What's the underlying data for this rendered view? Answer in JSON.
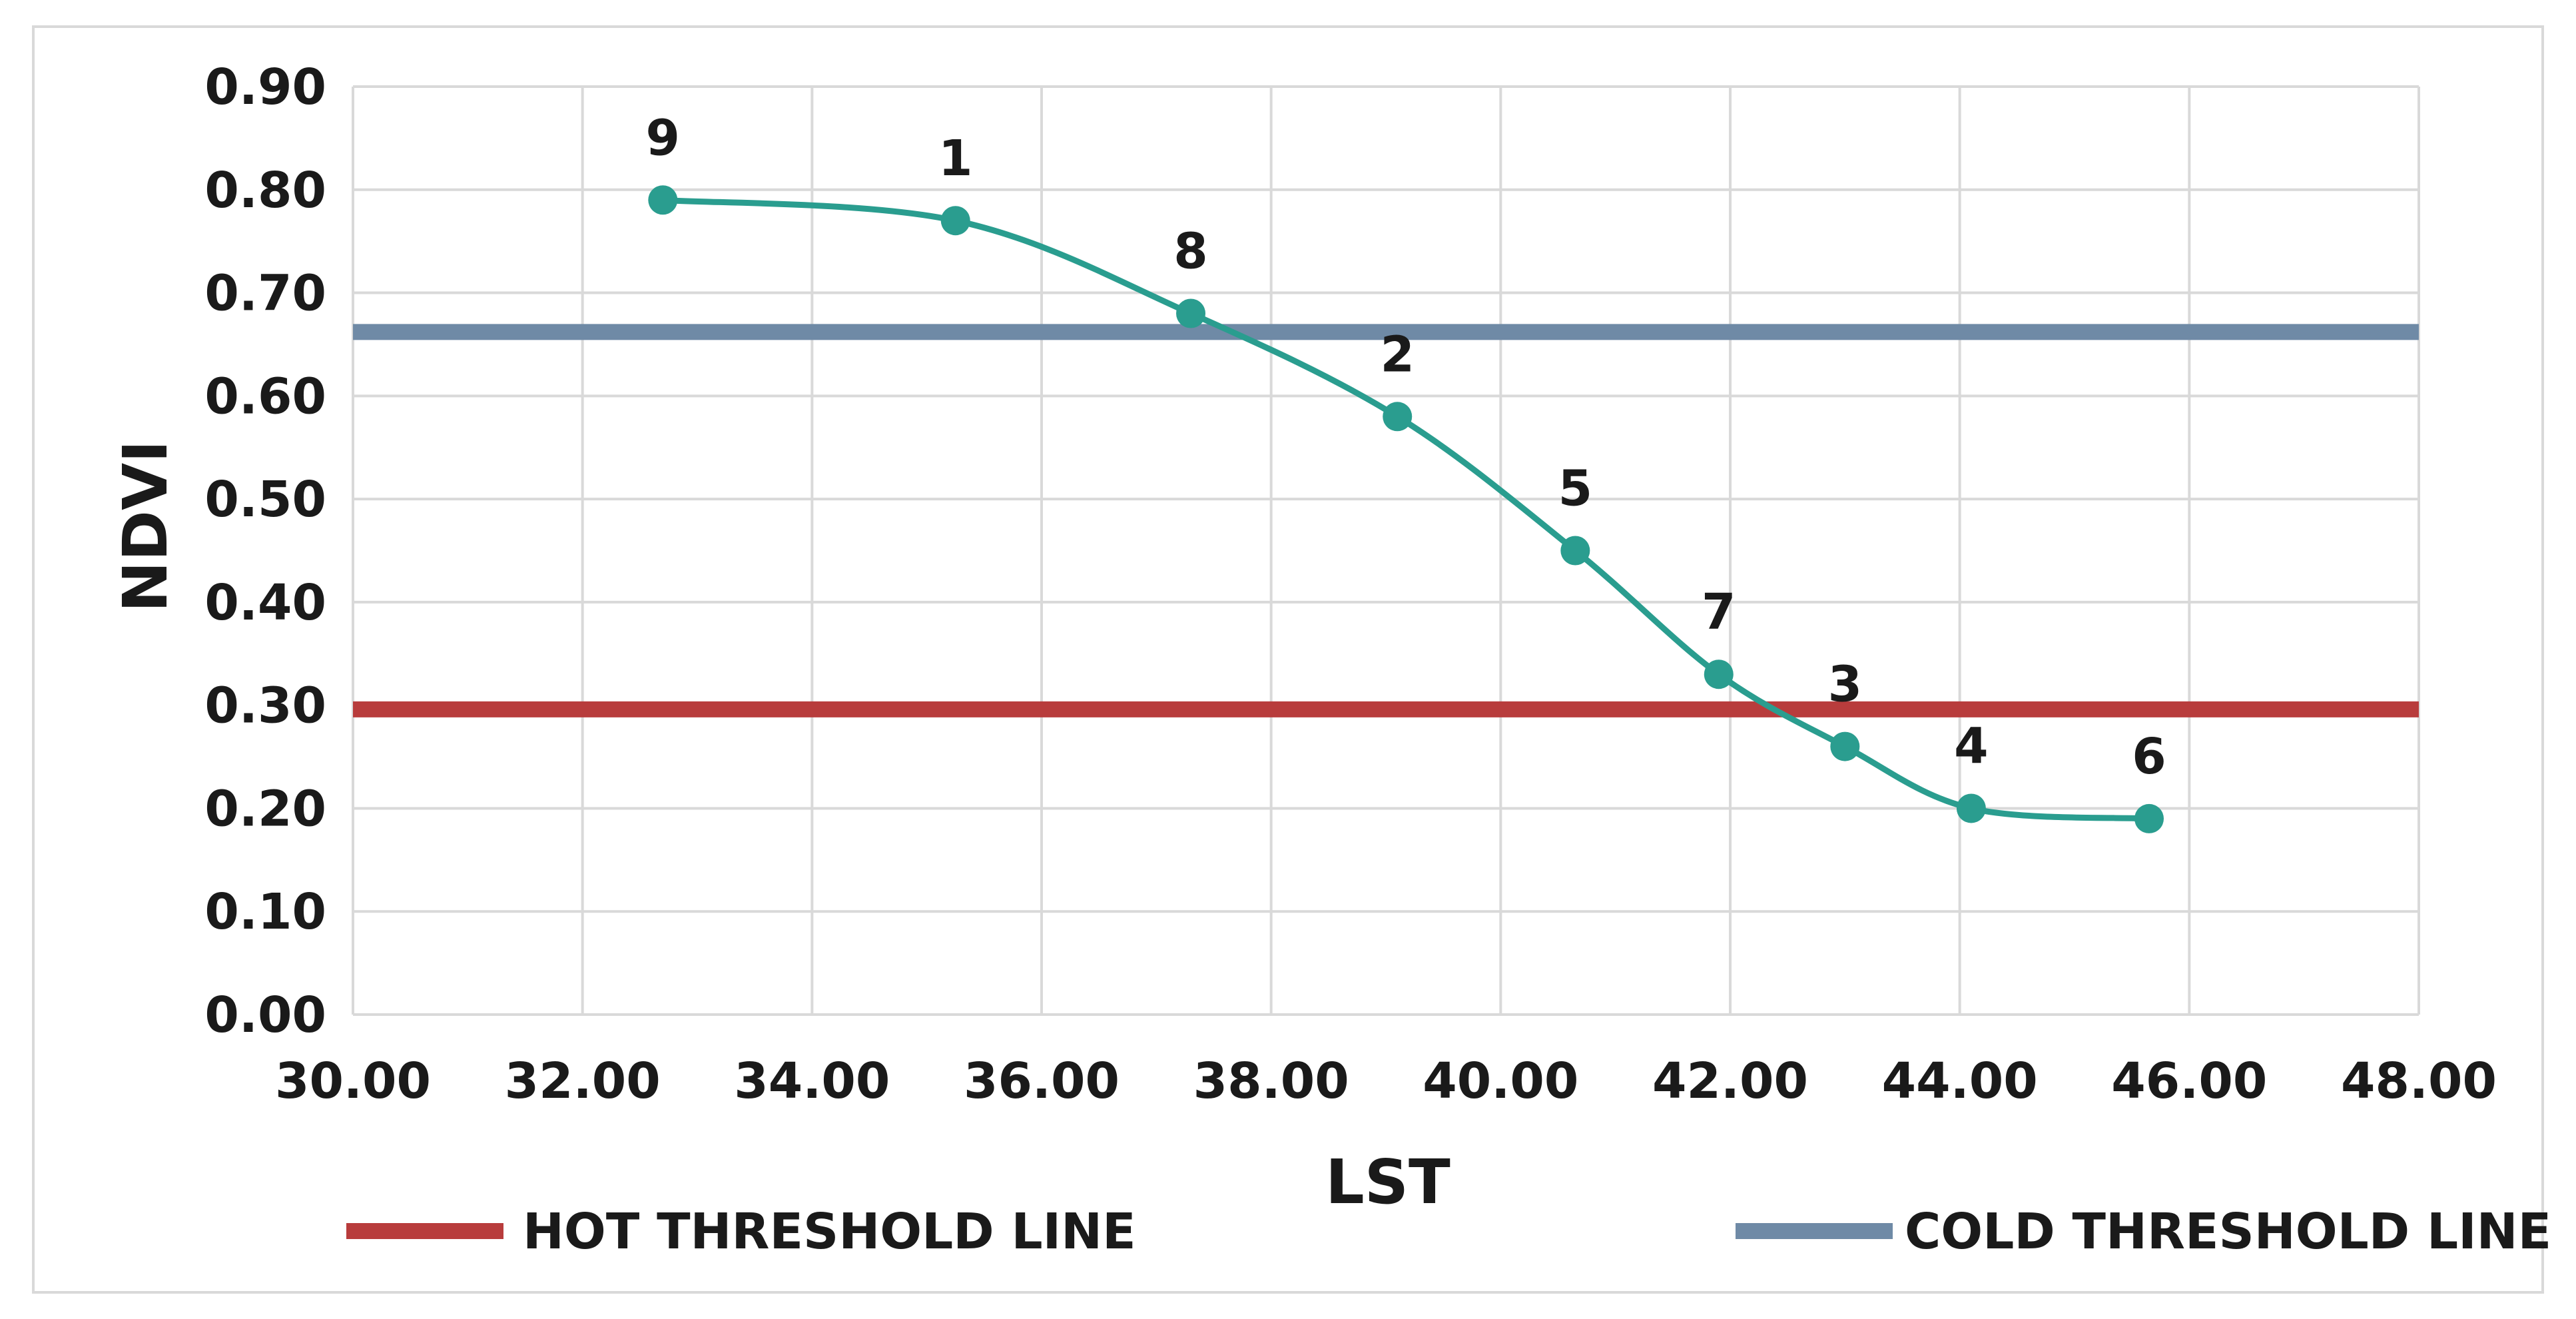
{
  "chart_data": {
    "type": "line",
    "xlabel": "LST",
    "ylabel": "NDVI",
    "xlim": [
      30,
      48
    ],
    "ylim": [
      0,
      0.9
    ],
    "x_ticks": [
      "30.00",
      "32.00",
      "34.00",
      "36.00",
      "38.00",
      "40.00",
      "42.00",
      "44.00",
      "46.00",
      "48.00"
    ],
    "y_ticks": [
      "0.00",
      "0.10",
      "0.20",
      "0.30",
      "0.40",
      "0.50",
      "0.60",
      "0.70",
      "0.80",
      "0.90"
    ],
    "grid": true,
    "legend_position": "bottom",
    "points": [
      {
        "label": "9",
        "x": 32.7,
        "y": 0.79
      },
      {
        "label": "1",
        "x": 35.25,
        "y": 0.77
      },
      {
        "label": "8",
        "x": 37.3,
        "y": 0.68
      },
      {
        "label": "2",
        "x": 39.1,
        "y": 0.58
      },
      {
        "label": "5",
        "x": 40.65,
        "y": 0.45
      },
      {
        "label": "7",
        "x": 41.9,
        "y": 0.33
      },
      {
        "label": "3",
        "x": 43.0,
        "y": 0.26
      },
      {
        "label": "4",
        "x": 44.1,
        "y": 0.2
      },
      {
        "label": "6",
        "x": 45.65,
        "y": 0.19
      }
    ],
    "thresholds": [
      {
        "name": "HOT THRESHOLD LINE",
        "y": 0.296,
        "color": "#b83c3c"
      },
      {
        "name": "COLD THRESHOLD LINE",
        "y": 0.662,
        "color": "#6f8aa6"
      }
    ],
    "series_color": "#2a9d8f"
  }
}
